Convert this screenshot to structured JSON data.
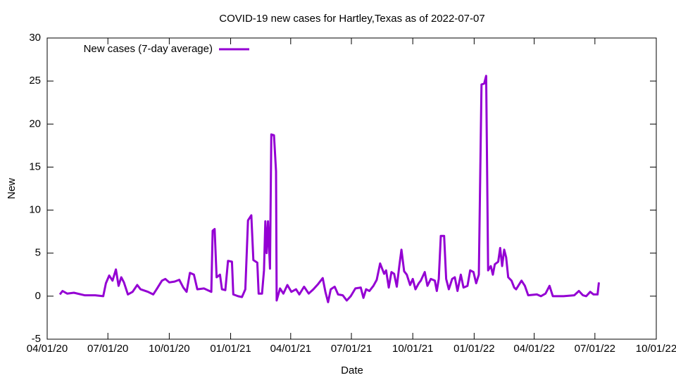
{
  "chart_data": {
    "type": "line",
    "title": "COVID-19 new cases for Hartley,Texas as of 2022-07-07",
    "x_label": "Date",
    "y_label": "New",
    "legend": "top left",
    "x": [
      "04/20/20",
      "04/24/20",
      "05/01/20",
      "05/11/20",
      "05/27/20",
      "06/12/20",
      "06/24/20",
      "06/28/20",
      "07/03/20",
      "07/08/20",
      "07/13/20",
      "07/17/20",
      "07/21/20",
      "07/25/20",
      "07/31/20",
      "08/07/20",
      "08/14/20",
      "08/19/20",
      "08/30/20",
      "09/07/20",
      "09/12/20",
      "09/20/20",
      "09/25/20",
      "10/01/20",
      "10/09/20",
      "10/16/20",
      "10/22/20",
      "10/27/20",
      "11/01/20",
      "11/07/20",
      "11/12/20",
      "11/22/20",
      "12/03/20",
      "12/05/20",
      "12/08/20",
      "12/11/20",
      "12/16/20",
      "12/19/20",
      "12/24/20",
      "12/28/20",
      "01/03/21",
      "01/05/21",
      "01/12/21",
      "01/18/21",
      "01/23/21",
      "01/27/21",
      "02/01/21",
      "02/04/21",
      "02/10/21",
      "02/12/21",
      "02/17/21",
      "02/20/21",
      "02/22/21",
      "02/24/21",
      "02/26/21",
      "03/01/21",
      "03/03/21",
      "03/07/21",
      "03/10/21",
      "03/11/21",
      "03/16/21",
      "03/21/21",
      "03/27/21",
      "04/02/21",
      "04/09/21",
      "04/14/21",
      "04/21/21",
      "04/28/21",
      "05/05/21",
      "05/12/21",
      "05/19/21",
      "05/23/21",
      "05/27/21",
      "05/31/21",
      "06/06/21",
      "06/11/21",
      "06/18/21",
      "06/24/21",
      "06/30/21",
      "07/07/21",
      "07/15/21",
      "07/19/21",
      "07/23/21",
      "07/28/21",
      "08/03/21",
      "08/08/21",
      "08/13/21",
      "08/19/21",
      "08/22/21",
      "08/26/21",
      "08/30/21",
      "09/03/21",
      "09/07/21",
      "09/11/21",
      "09/14/21",
      "09/18/21",
      "09/22/21",
      "09/27/21",
      "10/01/21",
      "10/05/21",
      "10/10/21",
      "10/13/21",
      "10/19/21",
      "10/23/21",
      "10/28/21",
      "11/03/21",
      "11/06/21",
      "11/09/21",
      "11/12/21",
      "11/17/21",
      "11/20/21",
      "11/24/21",
      "11/29/21",
      "12/03/21",
      "12/07/21",
      "12/12/21",
      "12/16/21",
      "12/22/21",
      "12/26/21",
      "12/31/21",
      "01/04/22",
      "01/08/22",
      "01/12/22",
      "01/16/22",
      "01/19/22",
      "01/22/22",
      "01/26/22",
      "01/29/22",
      "02/01/22",
      "02/06/22",
      "02/09/22",
      "02/12/22",
      "02/15/22",
      "02/18/22",
      "02/21/22",
      "02/26/22",
      "03/02/22",
      "03/05/22",
      "03/13/22",
      "03/18/22",
      "03/23/22",
      "04/05/22",
      "04/11/22",
      "04/18/22",
      "04/24/22",
      "04/29/22",
      "05/15/22",
      "05/31/22",
      "06/07/22",
      "06/13/22",
      "06/18/22",
      "06/24/22",
      "06/29/22",
      "07/05/22",
      "07/07/22"
    ],
    "series": [
      {
        "name": "New cases (7-day average)",
        "color": "#9400d3",
        "values": [
          0.2,
          0.6,
          0.3,
          0.4,
          0.1,
          0.1,
          0.0,
          1.5,
          2.4,
          1.8,
          3.1,
          1.2,
          2.2,
          1.6,
          0.2,
          0.5,
          1.3,
          0.8,
          0.5,
          0.2,
          0.8,
          1.8,
          2.0,
          1.6,
          1.7,
          1.9,
          1.0,
          0.5,
          2.7,
          2.5,
          0.8,
          0.9,
          0.5,
          7.6,
          7.8,
          2.2,
          2.5,
          0.8,
          0.7,
          4.1,
          4.0,
          0.2,
          0,
          -0.1,
          0.8,
          8.8,
          9.4,
          4.2,
          3.9,
          0.3,
          0.3,
          3.0,
          8.7,
          5.0,
          8.7,
          3.2,
          18.8,
          18.7,
          14.5,
          -0.5,
          0.9,
          0.3,
          1.3,
          0.5,
          0.8,
          0.2,
          1.1,
          0.3,
          0.8,
          1.4,
          2.1,
          0.5,
          -0.7,
          0.8,
          1.1,
          0.2,
          0.1,
          -0.5,
          0.0,
          0.9,
          1.0,
          -0.2,
          0.8,
          0.6,
          1.2,
          1.9,
          3.8,
          2.6,
          3.0,
          1.0,
          2.8,
          2.6,
          1.1,
          3.6,
          5.4,
          2.9,
          2.5,
          1.3,
          2.0,
          0.8,
          1.5,
          1.8,
          2.8,
          1.2,
          2.0,
          1.8,
          0.6,
          2.0,
          7.0,
          7.0,
          2.0,
          0.8,
          2.0,
          2.2,
          0.6,
          2.5,
          1.0,
          1.2,
          3.0,
          2.8,
          1.5,
          2.5,
          24.6,
          24.7,
          25.6,
          3.0,
          3.5,
          2.5,
          3.7,
          4.0,
          5.6,
          3.5,
          5.4,
          4.5,
          2.2,
          1.8,
          1.0,
          0.8,
          1.8,
          1.2,
          0.1,
          0.2,
          0,
          0.3,
          1.2,
          0,
          0,
          0.1,
          0.6,
          0.1,
          0,
          0.5,
          0.2,
          0.2,
          1.6
        ]
      }
    ],
    "xlim": [
      "04/01/20",
      "10/01/22"
    ],
    "xticks": [
      "04/01/20",
      "07/01/20",
      "10/01/20",
      "01/01/21",
      "04/01/21",
      "07/01/21",
      "10/01/21",
      "01/01/22",
      "04/01/22",
      "07/01/22",
      "10/01/22"
    ],
    "ylim": [
      -5,
      30
    ],
    "yticks": [
      -5,
      0,
      5,
      10,
      15,
      20,
      25,
      30
    ]
  }
}
